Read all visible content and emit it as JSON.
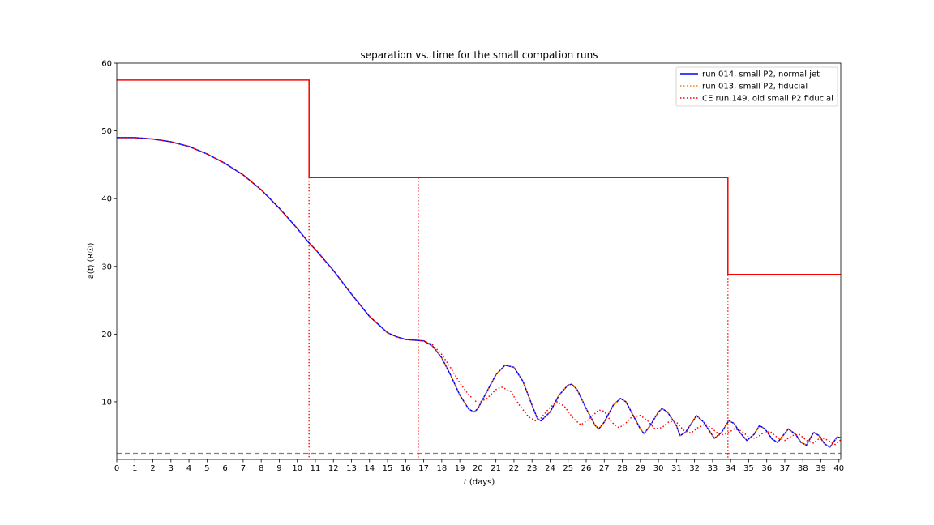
{
  "chart_data": {
    "type": "line",
    "title": "separation vs. time for the small compation runs",
    "xlabel_var": "t",
    "xlabel_unit": " (days)",
    "ylabel_pre": "a(",
    "ylabel_var": "t",
    "ylabel_post": ") (R☉)",
    "xlim": [
      0,
      40.1
    ],
    "ylim": [
      1.5,
      60
    ],
    "x_ticks": [
      0,
      1,
      2,
      3,
      4,
      5,
      6,
      7,
      8,
      9,
      10,
      11,
      12,
      13,
      14,
      15,
      16,
      17,
      18,
      19,
      20,
      21,
      22,
      23,
      24,
      25,
      26,
      27,
      28,
      29,
      30,
      31,
      32,
      33,
      34,
      35,
      36,
      37,
      38,
      39,
      40
    ],
    "y_ticks": [
      10,
      20,
      30,
      40,
      50,
      60
    ],
    "legend_position": "upper-right",
    "colors": {
      "run014": "#0000ff",
      "run013": "#ff7f0e",
      "run149": "#ff0000",
      "reference": "#808080"
    },
    "series": [
      {
        "name": "run 014, small P2, normal jet",
        "style": "solid",
        "color": "#0000ff",
        "x": [
          0,
          1,
          2,
          3,
          4,
          5,
          6,
          7,
          8,
          9,
          10,
          10.6,
          11,
          12,
          13,
          14,
          15,
          15.5,
          16,
          16.5,
          17,
          17.5,
          18,
          18.5,
          19,
          19.5,
          19.8,
          20,
          20.5,
          21,
          21.5,
          22,
          22.5,
          23,
          23.3,
          23.5,
          24,
          24.5,
          25,
          25.2,
          25.5,
          26,
          26.5,
          26.7,
          27,
          27.5,
          27.9,
          28.2,
          28.5,
          29,
          29.2,
          29.5,
          30,
          30.2,
          30.5,
          31,
          31.2,
          31.5,
          32,
          32.1,
          32.5,
          33,
          33.1,
          33.5,
          33.9,
          34.2,
          34.5,
          34.9,
          35.3,
          35.6,
          35.9,
          36.3,
          36.6,
          36.9,
          37.2,
          37.6,
          37.9,
          38.2,
          38.6,
          38.9,
          39.2,
          39.5,
          39.9,
          40.1
        ],
        "y": [
          49,
          49,
          48.8,
          48.4,
          47.7,
          46.6,
          45.2,
          43.5,
          41.3,
          38.6,
          35.6,
          33.6,
          32.5,
          29.4,
          25.9,
          22.6,
          20.2,
          19.6,
          19.2,
          19.1,
          19.0,
          18.2,
          16.5,
          13.9,
          11.0,
          8.9,
          8.5,
          9.0,
          11.5,
          14.0,
          15.4,
          15.1,
          13.0,
          9.5,
          7.5,
          7.2,
          8.5,
          11.0,
          12.5,
          12.6,
          11.8,
          9.0,
          6.5,
          6.0,
          7.0,
          9.5,
          10.5,
          10.0,
          8.5,
          6.0,
          5.3,
          6.3,
          8.5,
          9.0,
          8.5,
          6.5,
          5.0,
          5.5,
          7.5,
          8.0,
          7.0,
          5.0,
          4.6,
          5.5,
          7.2,
          6.8,
          5.5,
          4.3,
          5.2,
          6.5,
          6.0,
          4.5,
          4.0,
          5.0,
          6.0,
          5.2,
          4.0,
          3.6,
          5.5,
          5.0,
          3.8,
          3.3,
          4.8,
          4.7
        ]
      },
      {
        "name": "run 013, small P2, fiducial",
        "style": "dotted",
        "color": "#ff7f0e",
        "x": [
          0,
          1,
          2,
          3,
          4,
          5,
          6,
          7,
          8,
          9,
          10,
          10.6,
          11,
          12,
          13,
          14,
          15,
          15.5,
          16,
          16.5,
          17,
          17.5,
          18,
          18.5,
          19,
          19.5,
          19.8,
          20,
          20.5,
          21,
          21.5,
          22,
          22.5,
          23,
          23.3,
          23.5,
          24,
          24.5,
          25,
          25.2,
          25.5,
          26,
          26.5,
          26.7,
          27,
          27.5,
          27.9,
          28.2,
          28.5,
          29,
          29.2,
          29.5,
          30,
          30.2,
          30.5,
          31,
          31.2,
          31.5,
          32,
          32.1,
          32.5,
          33,
          33.1,
          33.5,
          33.9,
          34.2,
          34.5,
          34.9,
          35.3,
          35.6,
          35.9,
          36.3,
          36.6,
          36.9,
          37.2,
          37.6,
          37.9,
          38.2,
          38.6,
          38.9,
          39.2,
          39.5,
          39.9,
          40.1
        ],
        "y": [
          49,
          49,
          48.8,
          48.4,
          47.7,
          46.6,
          45.2,
          43.5,
          41.3,
          38.6,
          35.6,
          33.6,
          32.5,
          29.4,
          25.9,
          22.6,
          20.2,
          19.6,
          19.2,
          19.1,
          19.0,
          18.2,
          16.5,
          13.9,
          11.0,
          8.9,
          8.5,
          9.0,
          11.5,
          14.0,
          15.4,
          15.1,
          13.0,
          9.5,
          7.5,
          7.2,
          8.5,
          11.0,
          12.5,
          12.6,
          11.8,
          9.0,
          6.5,
          6.0,
          7.0,
          9.5,
          10.5,
          10.0,
          8.5,
          6.0,
          5.3,
          6.3,
          8.5,
          9.0,
          8.5,
          6.5,
          5.0,
          5.5,
          7.5,
          8.0,
          7.0,
          5.0,
          4.6,
          5.5,
          7.2,
          6.8,
          5.5,
          4.3,
          5.2,
          6.5,
          6.0,
          4.5,
          4.0,
          5.0,
          6.0,
          5.2,
          4.0,
          3.6,
          5.5,
          5.0,
          3.8,
          3.3,
          4.8,
          4.7
        ]
      },
      {
        "name": "CE run 149, old small P2 fiducial",
        "style": "dotted",
        "color": "#ff0000",
        "x": [
          0,
          1,
          2,
          3,
          4,
          5,
          6,
          7,
          8,
          9,
          10,
          10.6,
          11,
          12,
          13,
          14,
          15,
          15.5,
          16,
          16.5,
          17,
          17.5,
          18,
          18.5,
          19,
          19.5,
          20,
          20.5,
          21,
          21.3,
          21.8,
          22.3,
          22.8,
          23.2,
          23.5,
          24,
          24.4,
          24.8,
          25.3,
          25.7,
          26.1,
          26.7,
          27,
          27.4,
          27.8,
          28.1,
          28.5,
          29,
          29.4,
          29.8,
          30.2,
          30.6,
          31,
          31.4,
          31.8,
          32.2,
          32.6,
          33,
          33.4,
          33.8,
          34.2,
          34.6,
          35,
          35.4,
          35.8,
          36.2,
          36.6,
          37,
          37.4,
          37.8,
          38.2,
          38.6,
          39,
          39.4,
          39.8,
          40.1
        ],
        "y": [
          49,
          49,
          48.8,
          48.4,
          47.7,
          46.6,
          45.2,
          43.5,
          41.3,
          38.6,
          35.6,
          33.6,
          32.5,
          29.4,
          25.9,
          22.6,
          20.2,
          19.6,
          19.2,
          19.1,
          19.0,
          18.4,
          17.0,
          15.0,
          12.8,
          11.0,
          9.8,
          10.5,
          11.8,
          12.2,
          11.6,
          9.5,
          7.8,
          7.2,
          7.6,
          9.2,
          10.0,
          9.3,
          7.5,
          6.6,
          7.3,
          8.8,
          8.6,
          7.0,
          6.2,
          6.6,
          7.7,
          8.0,
          7.2,
          6.0,
          6.2,
          7.1,
          7.0,
          5.8,
          5.4,
          6.2,
          6.7,
          6.0,
          5.1,
          5.3,
          6.0,
          5.7,
          4.8,
          4.6,
          5.4,
          5.6,
          4.7,
          4.3,
          5.0,
          5.2,
          4.3,
          3.9,
          4.8,
          4.3,
          3.7,
          4.4
        ]
      }
    ],
    "step_line": {
      "color": "#ff0000",
      "x": [
        0,
        10.65,
        10.65,
        33.85,
        33.85,
        40.1
      ],
      "y": [
        57.5,
        57.5,
        43.1,
        43.1,
        28.8,
        28.8
      ]
    },
    "vertical_dotted_lines": [
      {
        "x": 10.65,
        "y_top": 57.5,
        "color": "#ff0000"
      },
      {
        "x": 16.7,
        "y_top": 43.1,
        "color": "#ff0000"
      },
      {
        "x": 33.85,
        "y_top": 43.1,
        "color": "#ff0000"
      }
    ],
    "reference_line": {
      "y": 2.4,
      "style": "dashed",
      "color": "#808080"
    }
  }
}
